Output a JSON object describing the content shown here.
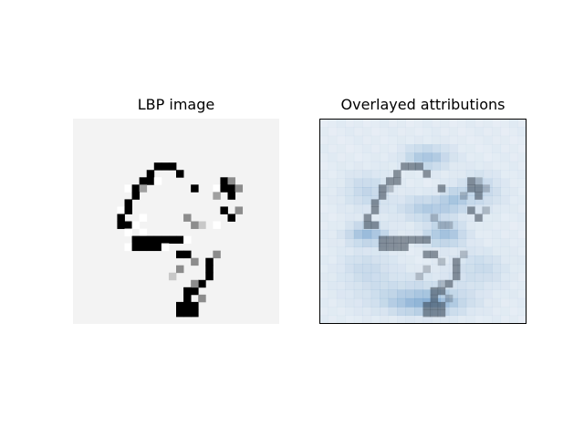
{
  "figure": {
    "left_title": "LBP image",
    "right_title": "Overlayed attributions"
  },
  "colors": {
    "background": "#f3f3f3",
    "stroke": "#000000",
    "attribution_tint": "#6f9fcb",
    "frame": "#000000"
  },
  "lbp": {
    "grid": 28,
    "strokes": [
      [
        14,
        13,
        9,
        0
      ],
      [
        15,
        14,
        9,
        0
      ],
      [
        16,
        15,
        9,
        0
      ],
      [
        16,
        16,
        10,
        0
      ],
      [
        12,
        16,
        10,
        255
      ],
      [
        12,
        15,
        10,
        255
      ],
      [
        10,
        17,
        12,
        0
      ],
      [
        10,
        17,
        12,
        255
      ],
      [
        17,
        10,
        15,
        0
      ],
      [
        17,
        10,
        15,
        255
      ],
      [
        18,
        10,
        15,
        0
      ]
    ],
    "extra_pixels": [
      [
        11,
        6,
        0
      ],
      [
        12,
        6,
        0
      ],
      [
        13,
        6,
        0
      ],
      [
        10,
        7,
        0
      ],
      [
        14,
        7,
        0
      ],
      [
        9,
        8,
        0
      ],
      [
        10,
        8,
        0
      ],
      [
        11,
        8,
        255
      ],
      [
        7,
        9,
        255
      ],
      [
        8,
        9,
        0
      ],
      [
        9,
        9,
        160
      ],
      [
        16,
        9,
        0
      ],
      [
        8,
        10,
        0
      ],
      [
        7,
        11,
        0
      ],
      [
        6,
        12,
        255
      ],
      [
        7,
        12,
        0
      ],
      [
        6,
        13,
        0
      ],
      [
        9,
        13,
        255
      ],
      [
        6,
        14,
        0
      ],
      [
        7,
        14,
        0
      ],
      [
        8,
        14,
        255
      ],
      [
        7,
        15,
        255
      ],
      [
        9,
        15,
        255
      ],
      [
        8,
        16,
        0
      ],
      [
        9,
        16,
        0
      ],
      [
        10,
        16,
        0
      ],
      [
        11,
        16,
        0
      ],
      [
        12,
        16,
        0
      ],
      [
        13,
        16,
        0
      ],
      [
        14,
        16,
        0
      ],
      [
        15,
        16,
        255
      ],
      [
        7,
        17,
        255
      ],
      [
        8,
        17,
        0
      ],
      [
        9,
        17,
        0
      ],
      [
        10,
        17,
        0
      ],
      [
        11,
        17,
        0
      ],
      [
        12,
        17,
        255
      ],
      [
        14,
        18,
        0
      ],
      [
        15,
        18,
        0
      ],
      [
        19,
        18,
        140
      ],
      [
        18,
        19,
        0
      ],
      [
        18,
        20,
        0
      ],
      [
        18,
        21,
        0
      ],
      [
        17,
        22,
        0
      ],
      [
        16,
        23,
        0
      ],
      [
        15,
        24,
        0
      ],
      [
        14,
        25,
        0
      ],
      [
        15,
        25,
        0
      ],
      [
        16,
        25,
        0
      ],
      [
        14,
        26,
        0
      ],
      [
        15,
        26,
        0
      ],
      [
        16,
        26,
        0
      ],
      [
        20,
        8,
        0
      ],
      [
        21,
        8,
        140
      ],
      [
        19,
        9,
        255
      ],
      [
        20,
        9,
        0
      ],
      [
        21,
        9,
        0
      ],
      [
        22,
        9,
        140
      ],
      [
        21,
        10,
        0
      ],
      [
        19,
        10,
        160
      ],
      [
        22,
        12,
        140
      ],
      [
        20,
        12,
        0
      ],
      [
        21,
        13,
        0
      ],
      [
        19,
        14,
        255
      ],
      [
        17,
        14,
        200
      ],
      [
        16,
        14,
        140
      ],
      [
        15,
        13,
        140
      ],
      [
        13,
        21,
        200
      ],
      [
        14,
        20,
        140
      ],
      [
        16,
        19,
        140
      ],
      [
        16,
        22,
        140
      ],
      [
        17,
        24,
        140
      ],
      [
        15,
        23,
        0
      ]
    ]
  },
  "attribution": {
    "grid": 24,
    "blobs": [
      [
        12,
        4,
        2.5,
        1.2,
        0.45
      ],
      [
        12,
        10,
        3,
        1.3,
        0.38
      ],
      [
        5,
        13,
        2.2,
        1.1,
        0.55
      ],
      [
        14,
        13,
        2.2,
        1.3,
        0.5
      ],
      [
        15,
        9,
        1.5,
        1.2,
        0.35
      ],
      [
        5,
        8,
        2.5,
        2,
        0.25
      ],
      [
        18,
        8,
        2.5,
        2,
        0.25
      ],
      [
        5,
        17,
        3,
        2,
        0.2
      ],
      [
        18,
        17,
        3,
        2,
        0.2
      ],
      [
        12,
        21,
        4,
        1.2,
        0.55
      ],
      [
        10,
        20,
        6,
        2,
        0.2
      ]
    ],
    "stroke_alpha": 0.55
  }
}
